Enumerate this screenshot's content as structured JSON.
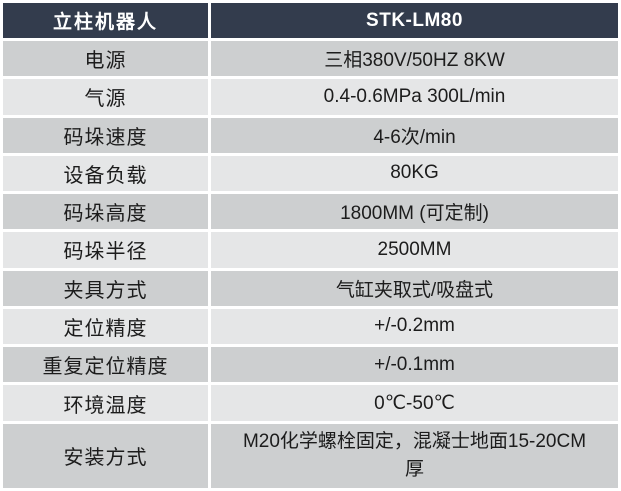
{
  "table": {
    "header": {
      "product_type": "立柱机器人",
      "model": "STK-LM80"
    },
    "rows": [
      {
        "label": "电源",
        "value": "三相380V/50HZ 8KW"
      },
      {
        "label": "气源",
        "value": "0.4-0.6MPa 300L/min"
      },
      {
        "label": "码垛速度",
        "value": "4-6次/min"
      },
      {
        "label": "设备负载",
        "value": "80KG"
      },
      {
        "label": "码垛高度",
        "value": "1800MM (可定制)"
      },
      {
        "label": "码垛半径",
        "value": "2500MM"
      },
      {
        "label": "夹具方式",
        "value": "气缸夹取式/吸盘式"
      },
      {
        "label": "定位精度",
        "value": "+/-0.2mm"
      },
      {
        "label": "重复定位精度",
        "value": "+/-0.1mm"
      },
      {
        "label": "环境温度",
        "value": "0℃-50℃"
      },
      {
        "label": "安装方式",
        "value": "M20化学螺栓固定，混凝士地面15-20CM厚"
      }
    ]
  },
  "colors": {
    "header_bg": "#333C4D",
    "header_text": "#FFFFFF",
    "row_dark": "#CDCFD0",
    "row_light": "#E5E6E7",
    "cell_text": "#1C1C1C",
    "divider": "#FFFFFF"
  }
}
